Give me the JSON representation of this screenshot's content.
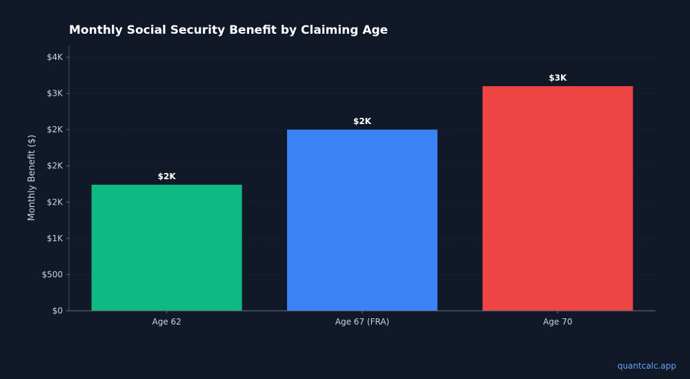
{
  "chart_data": {
    "type": "bar",
    "title": "Monthly Social Security Benefit by Claiming Age",
    "xlabel": "",
    "ylabel": "Monthly Benefit ($)",
    "categories": [
      "Age 62",
      "Age 67 (FRA)",
      "Age 70"
    ],
    "values": [
      1740,
      2500,
      3100
    ],
    "data_labels": [
      "$2K",
      "$2K",
      "$3K"
    ],
    "colors": [
      "#10b981",
      "#3b82f6",
      "#ef4444"
    ],
    "ylim": [
      0,
      3500
    ],
    "yticks": [
      0,
      500,
      1000,
      1500,
      2000,
      2500,
      3000,
      3500
    ],
    "ytick_labels": [
      "$0",
      "$500",
      "$1K",
      "$2K",
      "$2K",
      "$2K",
      "$3K",
      "$4K"
    ],
    "grid": true,
    "legend": "none"
  },
  "watermark": "quantcalc.app"
}
